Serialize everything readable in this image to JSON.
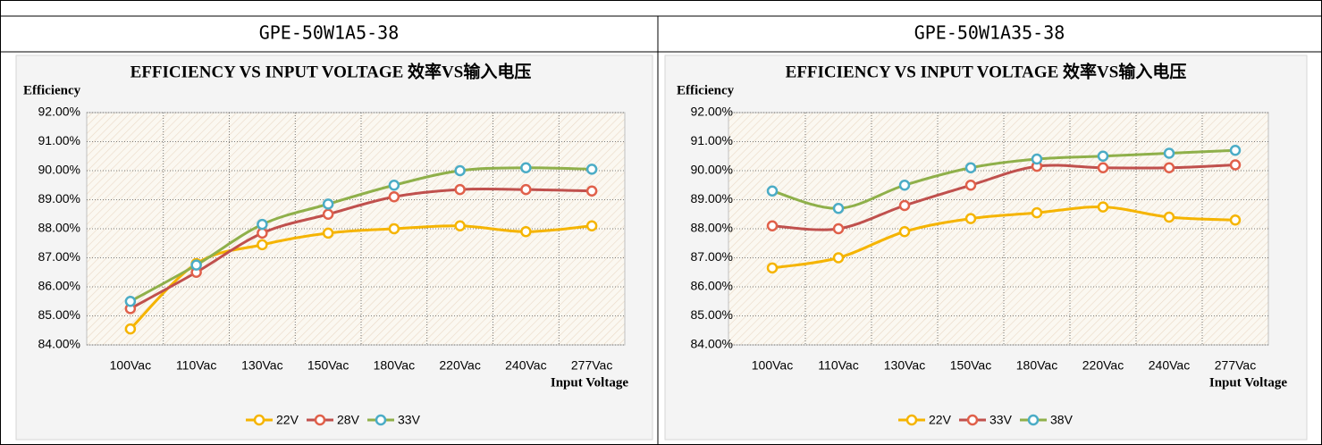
{
  "headers": [
    "GPE-50W1A5-38",
    "GPE-50W1A35-38"
  ],
  "chart_data": [
    {
      "type": "line",
      "title": "EFFICIENCY VS INPUT VOLTAGE 效率VS输入电压",
      "y_label": "Efficiency",
      "x_label": "Input Voltage",
      "categories": [
        "100Vac",
        "110Vac",
        "130Vac",
        "150Vac",
        "180Vac",
        "220Vac",
        "240Vac",
        "277Vac"
      ],
      "series": [
        {
          "name": "22V",
          "color": "#f5b400",
          "marker_color": "#f5b400",
          "values": [
            84.55,
            86.8,
            87.45,
            87.85,
            88.0,
            88.1,
            87.9,
            88.1
          ]
        },
        {
          "name": "28V",
          "color": "#c0504d",
          "marker_color": "#e0604a",
          "values": [
            85.25,
            86.5,
            87.85,
            88.5,
            89.1,
            89.35,
            89.35,
            89.3
          ]
        },
        {
          "name": "33V",
          "color": "#8fb04a",
          "marker_color": "#4bacc6",
          "values": [
            85.5,
            86.75,
            88.15,
            88.85,
            89.5,
            90.0,
            90.1,
            90.05
          ]
        }
      ],
      "ylim": [
        84,
        92
      ],
      "yticks": [
        {
          "value": 84,
          "label": "84.00%"
        },
        {
          "value": 85,
          "label": "85.00%"
        },
        {
          "value": 86,
          "label": "86.00%"
        },
        {
          "value": 87,
          "label": "87.00%"
        },
        {
          "value": 88,
          "label": "88.00%"
        },
        {
          "value": 89,
          "label": "89.00%"
        },
        {
          "value": 90,
          "label": "90.00%"
        },
        {
          "value": 91,
          "label": "91.00%"
        },
        {
          "value": 92,
          "label": "92.00%"
        }
      ],
      "grid": true,
      "legend": "bottom"
    },
    {
      "type": "line",
      "title": "EFFICIENCY VS INPUT VOLTAGE 效率VS输入电压",
      "y_label": "Efficiency",
      "x_label": "Input Voltage",
      "categories": [
        "100Vac",
        "110Vac",
        "130Vac",
        "150Vac",
        "180Vac",
        "220Vac",
        "240Vac",
        "277Vac"
      ],
      "series": [
        {
          "name": "22V",
          "color": "#f5b400",
          "marker_color": "#f5b400",
          "values": [
            86.65,
            87.0,
            87.9,
            88.35,
            88.55,
            88.75,
            88.4,
            88.3
          ]
        },
        {
          "name": "33V",
          "color": "#c0504d",
          "marker_color": "#e0604a",
          "values": [
            88.1,
            88.0,
            88.8,
            89.5,
            90.15,
            90.1,
            90.1,
            90.2
          ]
        },
        {
          "name": "38V",
          "color": "#8fb04a",
          "marker_color": "#4bacc6",
          "values": [
            89.3,
            88.7,
            89.5,
            90.1,
            90.4,
            90.5,
            90.6,
            90.7
          ]
        }
      ],
      "ylim": [
        84,
        92
      ],
      "yticks": [
        {
          "value": 84,
          "label": "84.00%"
        },
        {
          "value": 85,
          "label": "85.00%"
        },
        {
          "value": 86,
          "label": "86.00%"
        },
        {
          "value": 87,
          "label": "87.00%"
        },
        {
          "value": 88,
          "label": "88.00%"
        },
        {
          "value": 89,
          "label": "89.00%"
        },
        {
          "value": 90,
          "label": "90.00%"
        },
        {
          "value": 91,
          "label": "91.00%"
        },
        {
          "value": 92,
          "label": "92.00%"
        }
      ],
      "grid": true,
      "legend": "bottom"
    }
  ]
}
